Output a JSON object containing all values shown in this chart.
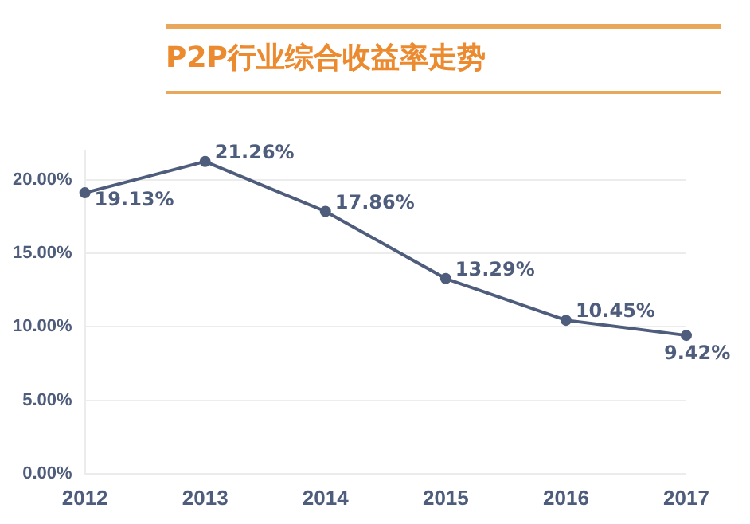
{
  "chart_data": {
    "type": "line",
    "title": "P2P行业综合收益率走势",
    "categories": [
      "2012",
      "2013",
      "2014",
      "2015",
      "2016",
      "2017"
    ],
    "series": [
      {
        "color": "#4f5d7c",
        "values": [
          19.13,
          21.26,
          17.86,
          13.29,
          10.45,
          9.42
        ],
        "value_labels": [
          "19.13%",
          "21.26%",
          "17.86%",
          "13.29%",
          "10.45%",
          "9.42%"
        ]
      }
    ],
    "ylim": [
      0,
      22
    ],
    "yticks": [
      {
        "value": 0,
        "label": "0.00%"
      },
      {
        "value": 5,
        "label": "5.00%"
      },
      {
        "value": 10,
        "label": "10.00%"
      },
      {
        "value": 15,
        "label": "15.00%"
      },
      {
        "value": 20,
        "label": "20.00%"
      }
    ],
    "grid": "y",
    "legend": false,
    "marker": "circle",
    "line_style": "solid"
  }
}
